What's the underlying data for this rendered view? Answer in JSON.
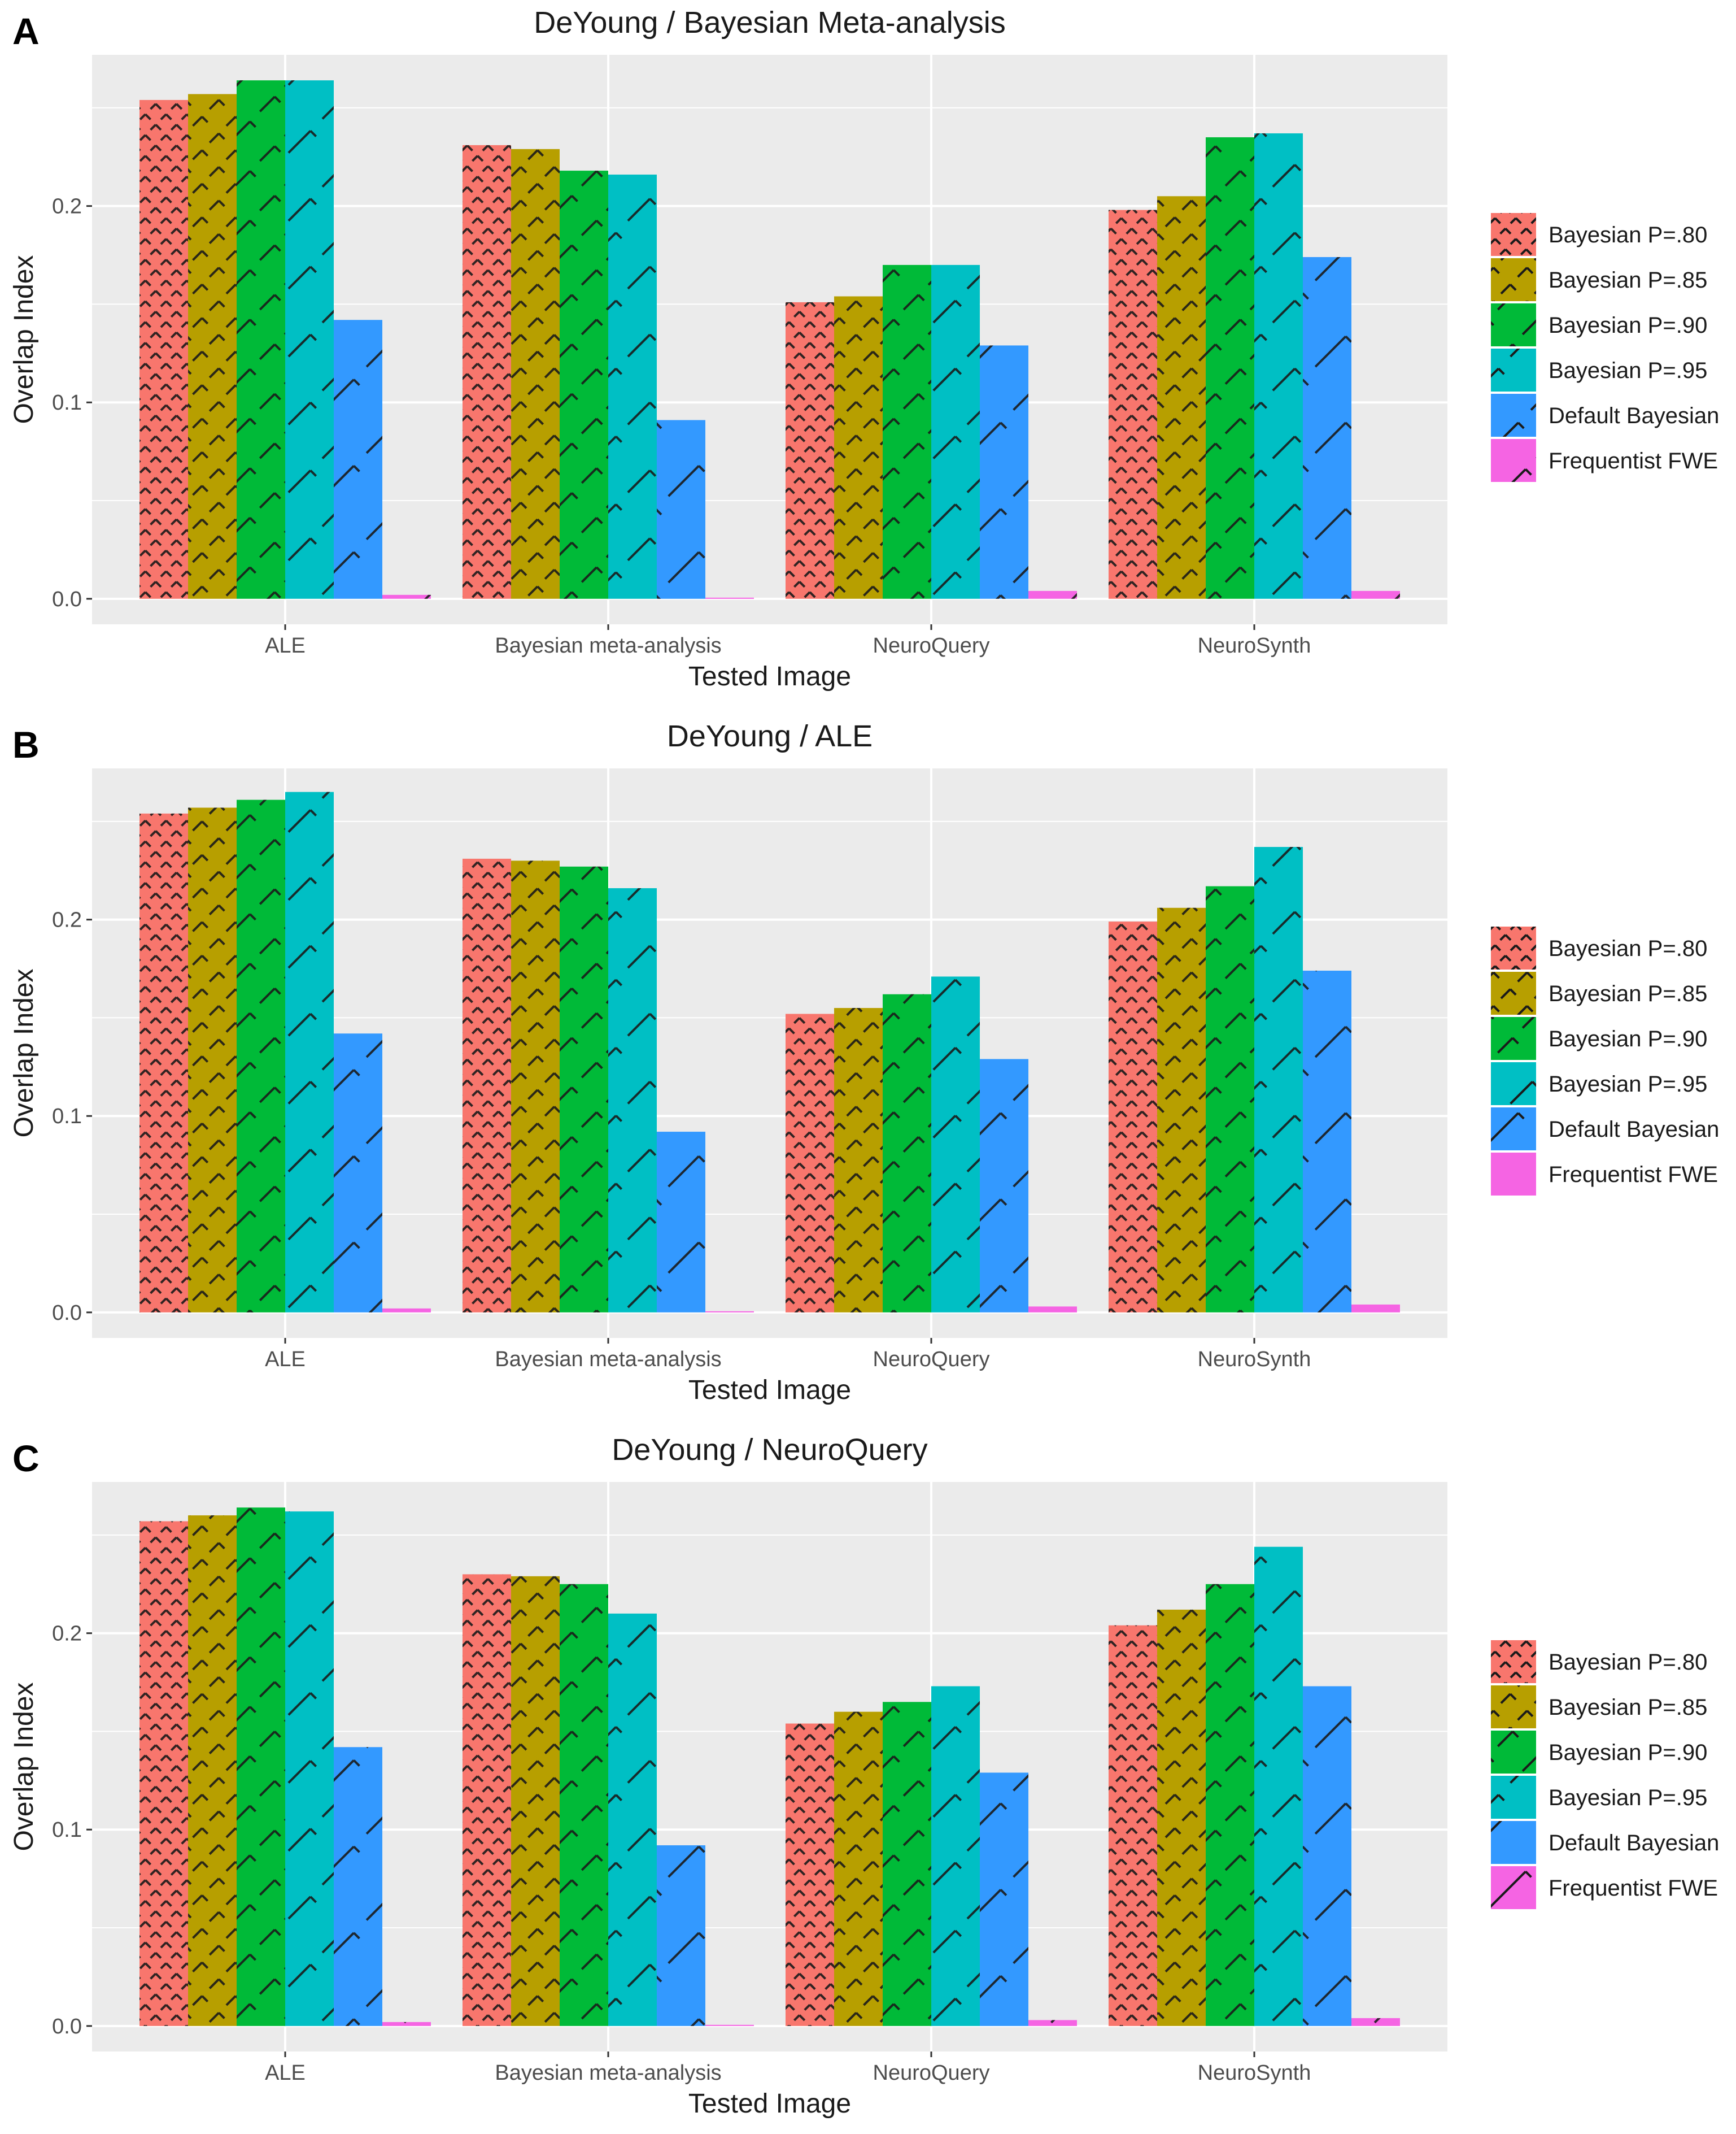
{
  "figure": {
    "colors": {
      "panel_bg": "#ebebeb",
      "grid": "#ffffff",
      "hatch": "#1a1a1a",
      "axis_text": "#4d4d4d",
      "title_text": "#1a1a1a"
    },
    "legend": {
      "entries": [
        {
          "label": "Bayesian P=.80",
          "color": "#f8766d"
        },
        {
          "label": "Bayesian P=.85",
          "color": "#b79f00"
        },
        {
          "label": "Bayesian P=.90",
          "color": "#00ba38"
        },
        {
          "label": "Bayesian P=.95",
          "color": "#00bfc4"
        },
        {
          "label": "Default Bayesian",
          "color": "#3399ff"
        },
        {
          "label": "Frequentist FWE",
          "color": "#f564e3"
        }
      ]
    }
  },
  "chart_data": [
    {
      "panel": "A",
      "type": "bar",
      "title": "DeYoung / Bayesian Meta-analysis",
      "xlabel": "Tested Image",
      "ylabel": "Overlap Index",
      "ylim": [
        -0.013,
        0.277
      ],
      "yticks": [
        "0.0",
        "0.1",
        "0.2"
      ],
      "categories": [
        "ALE",
        "Bayesian meta-analysis",
        "NeuroQuery",
        "NeuroSynth"
      ],
      "series": [
        {
          "name": "Bayesian P=.80",
          "values": [
            0.254,
            0.231,
            0.151,
            0.198
          ]
        },
        {
          "name": "Bayesian P=.85",
          "values": [
            0.257,
            0.229,
            0.154,
            0.205
          ]
        },
        {
          "name": "Bayesian P=.90",
          "values": [
            0.264,
            0.218,
            0.17,
            0.235
          ]
        },
        {
          "name": "Bayesian P=.95",
          "values": [
            0.264,
            0.216,
            0.17,
            0.237
          ]
        },
        {
          "name": "Default Bayesian",
          "values": [
            0.142,
            0.091,
            0.129,
            0.174
          ]
        },
        {
          "name": "Frequentist FWE",
          "values": [
            0.002,
            0.0005,
            0.004,
            0.004
          ]
        }
      ]
    },
    {
      "panel": "B",
      "type": "bar",
      "title": "DeYoung / ALE",
      "xlabel": "Tested Image",
      "ylabel": "Overlap Index",
      "ylim": [
        -0.013,
        0.277
      ],
      "yticks": [
        "0.0",
        "0.1",
        "0.2"
      ],
      "categories": [
        "ALE",
        "Bayesian meta-analysis",
        "NeuroQuery",
        "NeuroSynth"
      ],
      "series": [
        {
          "name": "Bayesian P=.80",
          "values": [
            0.254,
            0.231,
            0.152,
            0.199
          ]
        },
        {
          "name": "Bayesian P=.85",
          "values": [
            0.257,
            0.23,
            0.155,
            0.206
          ]
        },
        {
          "name": "Bayesian P=.90",
          "values": [
            0.261,
            0.227,
            0.162,
            0.217
          ]
        },
        {
          "name": "Bayesian P=.95",
          "values": [
            0.265,
            0.216,
            0.171,
            0.237
          ]
        },
        {
          "name": "Default Bayesian",
          "values": [
            0.142,
            0.092,
            0.129,
            0.174
          ]
        },
        {
          "name": "Frequentist FWE",
          "values": [
            0.002,
            0.0005,
            0.003,
            0.004
          ]
        }
      ]
    },
    {
      "panel": "C",
      "type": "bar",
      "title": "DeYoung / NeuroQuery",
      "xlabel": "Tested Image",
      "ylabel": "Overlap Index",
      "ylim": [
        -0.013,
        0.277
      ],
      "yticks": [
        "0.0",
        "0.1",
        "0.2"
      ],
      "categories": [
        "ALE",
        "Bayesian meta-analysis",
        "NeuroQuery",
        "NeuroSynth"
      ],
      "series": [
        {
          "name": "Bayesian P=.80",
          "values": [
            0.257,
            0.23,
            0.154,
            0.204
          ]
        },
        {
          "name": "Bayesian P=.85",
          "values": [
            0.26,
            0.229,
            0.16,
            0.212
          ]
        },
        {
          "name": "Bayesian P=.90",
          "values": [
            0.264,
            0.225,
            0.165,
            0.225
          ]
        },
        {
          "name": "Bayesian P=.95",
          "values": [
            0.262,
            0.21,
            0.173,
            0.244
          ]
        },
        {
          "name": "Default Bayesian",
          "values": [
            0.142,
            0.092,
            0.129,
            0.173
          ]
        },
        {
          "name": "Frequentist FWE",
          "values": [
            0.002,
            0.0005,
            0.003,
            0.004
          ]
        }
      ]
    }
  ]
}
